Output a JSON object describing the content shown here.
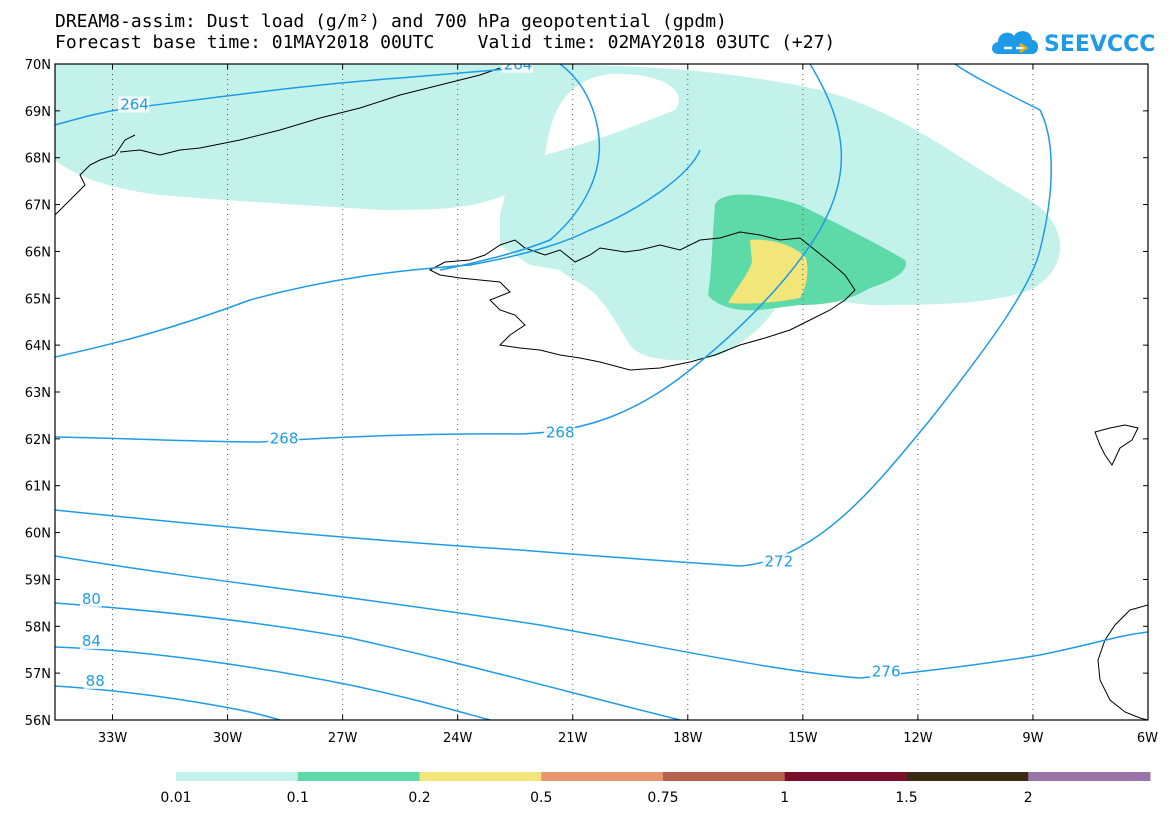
{
  "title": {
    "line1": "DREAM8-assim: Dust load (g/m²) and 700 hPa geopotential (gpdm)",
    "line2": "Forecast base time: 01MAY2018 00UTC    Valid time: 02MAY2018 03UTC (+27)"
  },
  "logo": {
    "text": "SEEVCCC",
    "color": "#1e9be8",
    "icon": "cloud-icon"
  },
  "map": {
    "lat_labels": [
      "70N",
      "69N",
      "68N",
      "67N",
      "66N",
      "65N",
      "64N",
      "63N",
      "62N",
      "61N",
      "60N",
      "59N",
      "58N",
      "57N",
      "56N"
    ],
    "lat_values": [
      70,
      69,
      68,
      67,
      66,
      65,
      64,
      63,
      62,
      61,
      60,
      59,
      58,
      57,
      56
    ],
    "lon_labels": [
      "33W",
      "30W",
      "27W",
      "24W",
      "21W",
      "18W",
      "15W",
      "12W",
      "9W",
      "6W"
    ],
    "lon_values": [
      -33,
      -30,
      -27,
      -24,
      -21,
      -18,
      -15,
      -12,
      -9,
      -6
    ],
    "contour_color": "#1e9be8",
    "contour_labels": [
      {
        "text": "264",
        "lon": -32.8,
        "lat": 69.05
      },
      {
        "text": "264",
        "lon": -22.8,
        "lat": 69.9
      },
      {
        "text": "268",
        "lon": -28.9,
        "lat": 61.92
      },
      {
        "text": "268",
        "lon": -21.7,
        "lat": 62.05
      },
      {
        "text": "272",
        "lon": -16.0,
        "lat": 59.3
      },
      {
        "text": "276",
        "lon": -13.2,
        "lat": 56.95
      },
      {
        "text": "80",
        "lon": -33.8,
        "lat": 58.5
      },
      {
        "text": "84",
        "lon": -33.8,
        "lat": 57.6
      },
      {
        "text": "88",
        "lon": -33.7,
        "lat": 56.75
      }
    ]
  },
  "colorbar": {
    "colors": [
      "#c3f2ea",
      "#5ed9a8",
      "#f2e57a",
      "#e8966e",
      "#b8604e",
      "#7a0f2a",
      "#3b2a14",
      "#9a73a8"
    ],
    "labels": [
      "0.01",
      "0.1",
      "0.2",
      "0.5",
      "0.75",
      "1",
      "1.5",
      "2"
    ]
  }
}
